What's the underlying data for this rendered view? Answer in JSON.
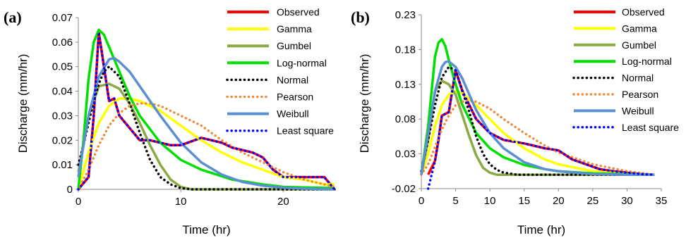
{
  "chart_data": [
    {
      "panel_label": "(a)",
      "type": "line",
      "xlabel": "Time (hr)",
      "ylabel": "Discharge (mm/hr)",
      "xlim": [
        0,
        25
      ],
      "ylim": [
        0,
        0.07
      ],
      "xticks": [
        0,
        10,
        20
      ],
      "yticks": [
        0,
        0.01,
        0.02,
        0.03,
        0.04,
        0.05,
        0.06,
        0.07
      ],
      "xtick_labels": [
        "0",
        "10",
        "20"
      ],
      "ytick_labels": [
        "0",
        "0.01",
        "0.02",
        "0.03",
        "0.04",
        "0.05",
        "0.06",
        "0.07"
      ],
      "grid": false,
      "legend_position": "right",
      "series": [
        {
          "name": "Observed",
          "color": "#ff0000",
          "style": "solid",
          "x": [
            0,
            1,
            1.5,
            2,
            2.5,
            3,
            3.5,
            4,
            5,
            6,
            7,
            8,
            9,
            10,
            12,
            14,
            15,
            16,
            17,
            18,
            19,
            20,
            21,
            22,
            23,
            24,
            25
          ],
          "y": [
            0,
            0.005,
            0.03,
            0.064,
            0.05,
            0.036,
            0.037,
            0.03,
            0.025,
            0.02,
            0.02,
            0.019,
            0.018,
            0.018,
            0.021,
            0.019,
            0.017,
            0.016,
            0.015,
            0.013,
            0.008,
            0.005,
            0.005,
            0.005,
            0.005,
            0.005,
            0
          ]
        },
        {
          "name": "Gamma",
          "color": "#ffff00",
          "style": "solid",
          "x": [
            0,
            1,
            2,
            3,
            4,
            5,
            6,
            8,
            10,
            12,
            14,
            16,
            18,
            20,
            22,
            24,
            25
          ],
          "y": [
            0,
            0.015,
            0.027,
            0.034,
            0.037,
            0.037,
            0.036,
            0.032,
            0.026,
            0.02,
            0.015,
            0.011,
            0.008,
            0.005,
            0.004,
            0.002,
            0.002
          ]
        },
        {
          "name": "Gumbel",
          "color": "#8aaa44",
          "style": "solid",
          "x": [
            0,
            1,
            2,
            3,
            4,
            5,
            6,
            7,
            8,
            9,
            10,
            11,
            12,
            14,
            16,
            20,
            25
          ],
          "y": [
            0.007,
            0.03,
            0.042,
            0.043,
            0.041,
            0.035,
            0.027,
            0.018,
            0.01,
            0.004,
            0.001,
            0,
            0,
            0,
            0,
            0,
            0
          ]
        },
        {
          "name": "Log-normal",
          "color": "#00e000",
          "style": "solid",
          "x": [
            0,
            0.5,
            1,
            1.5,
            2,
            2.5,
            3,
            4,
            5,
            6,
            8,
            10,
            12,
            15,
            18,
            20,
            22,
            25
          ],
          "y": [
            0,
            0.02,
            0.045,
            0.06,
            0.065,
            0.063,
            0.058,
            0.048,
            0.038,
            0.03,
            0.019,
            0.012,
            0.008,
            0.004,
            0.002,
            0.001,
            0.0008,
            0.0005
          ]
        },
        {
          "name": "Normal",
          "color": "#000000",
          "style": "dotted",
          "x": [
            0,
            0.5,
            1,
            1.5,
            2,
            2.5,
            3,
            4,
            5,
            6,
            7,
            8,
            9,
            10,
            11,
            12,
            14,
            16,
            20,
            25
          ],
          "y": [
            0.01,
            0.018,
            0.027,
            0.036,
            0.043,
            0.048,
            0.05,
            0.046,
            0.035,
            0.023,
            0.012,
            0.005,
            0.002,
            0.0005,
            0,
            0,
            0,
            0,
            0,
            0
          ]
        },
        {
          "name": "Pearson",
          "color": "#f08a3c",
          "style": "dotted",
          "x": [
            0,
            1,
            2,
            3,
            4,
            5,
            6,
            7,
            8,
            10,
            12,
            14,
            16,
            18,
            20,
            22,
            24,
            25
          ],
          "y": [
            0,
            0.008,
            0.018,
            0.026,
            0.031,
            0.034,
            0.035,
            0.035,
            0.034,
            0.03,
            0.026,
            0.02,
            0.015,
            0.011,
            0.007,
            0.004,
            0.002,
            0.001
          ]
        },
        {
          "name": "Weibull",
          "color": "#5b8fd3",
          "style": "solid",
          "x": [
            0,
            0.5,
            1,
            2,
            3,
            3.5,
            4,
            5,
            6,
            7,
            8,
            10,
            12,
            14,
            16,
            18,
            20,
            22,
            24,
            25
          ],
          "y": [
            0.005,
            0.018,
            0.03,
            0.046,
            0.053,
            0.0535,
            0.052,
            0.048,
            0.042,
            0.036,
            0.03,
            0.019,
            0.011,
            0.006,
            0.003,
            0.0015,
            0.0007,
            0.0003,
            0.0001,
            0
          ]
        },
        {
          "name": "Least square",
          "color": "#0000ff",
          "style": "dotted",
          "x": [
            0,
            1,
            1.5,
            2,
            2.5,
            3,
            3.5,
            4,
            5,
            6,
            7,
            8,
            9,
            10,
            12,
            14,
            15,
            16,
            17,
            18,
            19,
            20,
            21,
            22,
            23,
            24,
            25
          ],
          "y": [
            0,
            0.005,
            0.03,
            0.064,
            0.05,
            0.036,
            0.037,
            0.03,
            0.025,
            0.02,
            0.02,
            0.019,
            0.018,
            0.018,
            0.021,
            0.019,
            0.017,
            0.016,
            0.015,
            0.013,
            0.008,
            0.005,
            0.005,
            0.005,
            0.005,
            0.005,
            0
          ]
        }
      ]
    },
    {
      "panel_label": "(b)",
      "type": "line",
      "xlabel": "Time (hr)",
      "ylabel": "Discharge (mm/hr)",
      "xlim": [
        0,
        35
      ],
      "ylim": [
        -0.02,
        0.23
      ],
      "xticks": [
        0,
        5,
        10,
        15,
        20,
        25,
        30,
        35
      ],
      "yticks": [
        -0.02,
        0.03,
        0.08,
        0.13,
        0.18,
        0.23
      ],
      "xtick_labels": [
        "0",
        "5",
        "10",
        "15",
        "20",
        "25",
        "30",
        "35"
      ],
      "ytick_labels": [
        "-0.02",
        "0.03",
        "0.08",
        "0.13",
        "0.18",
        "0.23"
      ],
      "grid": false,
      "legend_position": "right",
      "series": [
        {
          "name": "Observed",
          "color": "#ff0000",
          "style": "solid",
          "x": [
            1,
            2,
            2.5,
            3,
            4,
            4.5,
            5,
            6,
            7,
            8,
            9,
            10,
            12,
            15,
            18,
            20,
            22,
            24,
            26,
            28,
            30,
            32,
            34
          ],
          "y": [
            0,
            0.02,
            0.05,
            0.085,
            0.09,
            0.12,
            0.15,
            0.12,
            0.1,
            0.08,
            0.07,
            0.06,
            0.05,
            0.045,
            0.038,
            0.035,
            0.022,
            0.015,
            0.008,
            0.005,
            0.003,
            0.001,
            0
          ]
        },
        {
          "name": "Gamma",
          "color": "#ffff00",
          "style": "solid",
          "x": [
            0,
            1,
            2,
            3,
            4,
            5,
            6,
            8,
            10,
            12,
            15,
            18,
            20,
            25,
            30,
            34
          ],
          "y": [
            0,
            0.03,
            0.07,
            0.1,
            0.115,
            0.12,
            0.117,
            0.1,
            0.08,
            0.06,
            0.038,
            0.022,
            0.015,
            0.005,
            0.001,
            0
          ]
        },
        {
          "name": "Gumbel",
          "color": "#8aaa44",
          "style": "solid",
          "x": [
            0,
            1,
            2,
            3,
            4,
            5,
            6,
            7,
            8,
            9,
            10,
            11,
            12,
            15,
            20,
            34
          ],
          "y": [
            0,
            0.05,
            0.12,
            0.135,
            0.13,
            0.115,
            0.085,
            0.055,
            0.028,
            0.01,
            0.003,
            0,
            0,
            0,
            0,
            0
          ]
        },
        {
          "name": "Log-normal",
          "color": "#00e000",
          "style": "solid",
          "x": [
            0,
            1,
            2,
            2.5,
            3,
            3.5,
            4,
            5,
            6,
            8,
            10,
            12,
            15,
            18,
            20,
            25,
            30,
            34
          ],
          "y": [
            0,
            0.07,
            0.17,
            0.19,
            0.195,
            0.185,
            0.165,
            0.13,
            0.1,
            0.06,
            0.038,
            0.025,
            0.014,
            0.008,
            0.005,
            0.002,
            0.001,
            0
          ]
        },
        {
          "name": "Normal",
          "color": "#000000",
          "style": "dotted",
          "x": [
            0,
            1,
            2,
            3,
            4,
            5,
            6,
            7,
            8,
            9,
            10,
            11,
            12,
            14,
            16,
            20,
            34
          ],
          "y": [
            0.005,
            0.05,
            0.1,
            0.14,
            0.155,
            0.15,
            0.12,
            0.09,
            0.055,
            0.03,
            0.015,
            0.007,
            0.003,
            0,
            0,
            0,
            0
          ]
        },
        {
          "name": "Pearson",
          "color": "#f08a3c",
          "style": "dotted",
          "x": [
            0,
            1,
            2,
            3,
            4,
            5,
            6,
            7,
            8,
            10,
            12,
            15,
            18,
            20,
            25,
            30,
            34
          ],
          "y": [
            0,
            0.015,
            0.04,
            0.065,
            0.085,
            0.1,
            0.105,
            0.107,
            0.105,
            0.095,
            0.08,
            0.06,
            0.042,
            0.032,
            0.015,
            0.005,
            0
          ]
        },
        {
          "name": "Weibull",
          "color": "#5b8fd3",
          "style": "solid",
          "x": [
            0,
            1,
            2,
            3,
            3.5,
            4,
            5,
            6,
            7,
            8,
            10,
            12,
            15,
            18,
            20,
            25,
            30,
            34
          ],
          "y": [
            0,
            0.06,
            0.12,
            0.155,
            0.162,
            0.163,
            0.155,
            0.138,
            0.115,
            0.093,
            0.06,
            0.038,
            0.018,
            0.008,
            0.005,
            0.001,
            0,
            0
          ]
        },
        {
          "name": "Least square",
          "color": "#0000ff",
          "style": "dotted",
          "x": [
            1,
            2,
            2.5,
            3,
            4,
            4.5,
            5,
            6,
            7,
            8,
            9,
            10,
            12,
            15,
            18,
            20,
            22,
            24,
            26,
            28,
            30,
            32,
            34
          ],
          "y": [
            -0.02,
            0.02,
            0.05,
            0.085,
            0.09,
            0.12,
            0.15,
            0.12,
            0.1,
            0.08,
            0.07,
            0.06,
            0.05,
            0.045,
            0.038,
            0.035,
            0.022,
            0.015,
            0.008,
            0.005,
            0.003,
            0.001,
            0
          ]
        }
      ]
    }
  ]
}
